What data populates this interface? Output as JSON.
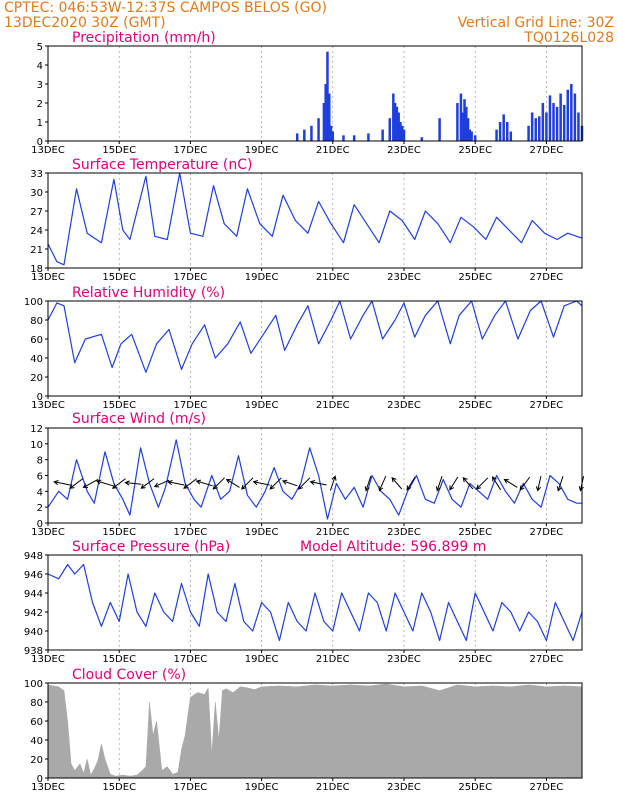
{
  "header": {
    "line1": "CPTEC:   046:53W-12:37S   CAMPOS BELOS (GO)",
    "line2": "13DEC2020 30Z (GMT)",
    "right1": "Vertical Grid Line: 30Z",
    "right2": "TQ0126L028"
  },
  "colors": {
    "line": "#1f3fdc",
    "header": "#e07a1e",
    "title": "#e0007a",
    "cloud": "#a9a9a9",
    "grid": "#888888"
  },
  "chart_data": [
    {
      "type": "bar",
      "title": "Precipitation (mm/h)",
      "ylim": [
        0,
        5
      ],
      "yticks": [
        0,
        1,
        2,
        3,
        4,
        5
      ],
      "xlim": [
        13,
        28
      ],
      "xticks": [
        13,
        15,
        17,
        19,
        21,
        23,
        25,
        27
      ],
      "xticklabels": [
        "13DEC",
        "15DEC",
        "17DEC",
        "19DEC",
        "21DEC",
        "23DEC",
        "25DEC",
        "27DEC"
      ],
      "series": [
        {
          "x": [
            20.0,
            20.2,
            20.4,
            20.6,
            20.75,
            20.8,
            20.85,
            20.9,
            20.95,
            21.0,
            21.3,
            21.6,
            22.0,
            22.4,
            22.6,
            22.7,
            22.75,
            22.8,
            22.85,
            22.9,
            22.95,
            23.0,
            23.5,
            24.0,
            24.5,
            24.6,
            24.65,
            24.7,
            24.75,
            24.8,
            24.85,
            24.9,
            25.0,
            25.6,
            25.7,
            25.8,
            25.9,
            26.0,
            26.5,
            26.6,
            26.7,
            26.8,
            26.9,
            27.0,
            27.1,
            27.2,
            27.3,
            27.4,
            27.5,
            27.6,
            27.7,
            27.8,
            27.9,
            28.0
          ],
          "y": [
            0.4,
            0.6,
            0.8,
            1.2,
            2.0,
            3.0,
            4.7,
            2.5,
            0.8,
            0.5,
            0.3,
            0.3,
            0.4,
            0.6,
            1.2,
            2.5,
            2.0,
            1.8,
            1.5,
            1.0,
            0.8,
            0.6,
            0.2,
            1.2,
            2.0,
            2.5,
            1.5,
            2.2,
            1.8,
            1.2,
            0.6,
            0.5,
            0.3,
            0.6,
            1.0,
            1.4,
            1.0,
            0.5,
            0.8,
            1.5,
            1.2,
            1.3,
            2.0,
            1.5,
            2.4,
            2.0,
            1.8,
            2.5,
            1.9,
            2.7,
            3.0,
            2.5,
            1.5,
            0.8
          ]
        }
      ]
    },
    {
      "type": "line",
      "title": "Surface Temperature (nC)",
      "ylim": [
        18,
        33
      ],
      "yticks": [
        18,
        21,
        24,
        27,
        30,
        33
      ],
      "xlim": [
        13,
        28
      ],
      "xticks": [
        13,
        15,
        17,
        19,
        21,
        23,
        25,
        27
      ],
      "xticklabels": [
        "13DEC",
        "15DEC",
        "17DEC",
        "19DEC",
        "21DEC",
        "23DEC",
        "25DEC",
        "27DEC"
      ],
      "series": [
        {
          "x": [
            13.0,
            13.25,
            13.45,
            13.8,
            14.1,
            14.5,
            14.85,
            15.1,
            15.3,
            15.75,
            16.0,
            16.35,
            16.7,
            17.0,
            17.35,
            17.65,
            17.95,
            18.3,
            18.6,
            18.95,
            19.3,
            19.6,
            19.95,
            20.3,
            20.6,
            20.95,
            21.3,
            21.6,
            21.95,
            22.3,
            22.6,
            22.95,
            23.3,
            23.6,
            23.95,
            24.3,
            24.6,
            24.95,
            25.3,
            25.6,
            25.95,
            26.3,
            26.6,
            26.95,
            27.3,
            27.6,
            27.95,
            28.0
          ],
          "y": [
            21.8,
            19.0,
            18.5,
            30.5,
            23.5,
            22.0,
            32.0,
            24.0,
            22.5,
            32.5,
            23.0,
            22.5,
            33.0,
            23.5,
            23.0,
            31.0,
            25.0,
            23.0,
            30.5,
            25.0,
            23.0,
            29.5,
            25.5,
            23.5,
            28.5,
            25.0,
            22.0,
            28.0,
            25.0,
            22.0,
            27.0,
            25.5,
            22.5,
            27.0,
            25.0,
            22.0,
            26.0,
            24.5,
            22.5,
            26.0,
            24.0,
            22.0,
            25.5,
            23.5,
            22.5,
            23.5,
            22.8,
            22.8
          ]
        }
      ]
    },
    {
      "type": "line",
      "title": "Relative Humidity (%)",
      "ylim": [
        0,
        100
      ],
      "yticks": [
        0,
        20,
        40,
        60,
        80,
        100
      ],
      "xlim": [
        13,
        28
      ],
      "xticks": [
        13,
        15,
        17,
        19,
        21,
        23,
        25,
        27
      ],
      "xticklabels": [
        "13DEC",
        "15DEC",
        "17DEC",
        "19DEC",
        "21DEC",
        "23DEC",
        "25DEC",
        "27DEC"
      ],
      "series": [
        {
          "x": [
            13.0,
            13.25,
            13.45,
            13.75,
            14.05,
            14.5,
            14.8,
            15.05,
            15.35,
            15.75,
            16.05,
            16.4,
            16.75,
            17.05,
            17.4,
            17.7,
            18.05,
            18.4,
            18.7,
            19.05,
            19.4,
            19.65,
            20.0,
            20.3,
            20.6,
            20.95,
            21.2,
            21.5,
            21.85,
            22.1,
            22.4,
            22.75,
            23.0,
            23.3,
            23.6,
            23.95,
            24.3,
            24.55,
            24.9,
            25.2,
            25.55,
            25.85,
            26.2,
            26.55,
            26.85,
            27.2,
            27.5,
            27.85,
            28.0
          ],
          "y": [
            80,
            98,
            95,
            35,
            60,
            65,
            30,
            55,
            65,
            25,
            55,
            70,
            28,
            55,
            75,
            40,
            55,
            78,
            45,
            65,
            85,
            48,
            75,
            95,
            55,
            80,
            100,
            60,
            85,
            100,
            60,
            80,
            98,
            62,
            85,
            100,
            55,
            85,
            100,
            60,
            85,
            100,
            60,
            90,
            100,
            62,
            95,
            100,
            95
          ]
        }
      ]
    },
    {
      "type": "line",
      "title": "Surface Wind (m/s)",
      "ylim": [
        0,
        12
      ],
      "yticks": [
        0,
        2,
        4,
        6,
        8,
        10,
        12
      ],
      "xlim": [
        13,
        28
      ],
      "xticks": [
        13,
        15,
        17,
        19,
        21,
        23,
        25,
        27
      ],
      "xticklabels": [
        "13DEC",
        "15DEC",
        "17DEC",
        "19DEC",
        "21DEC",
        "23DEC",
        "25DEC",
        "27DEC"
      ],
      "series": [
        {
          "x": [
            13.0,
            13.3,
            13.55,
            13.8,
            14.1,
            14.3,
            14.6,
            14.85,
            15.1,
            15.3,
            15.6,
            15.85,
            16.1,
            16.3,
            16.6,
            16.85,
            17.1,
            17.3,
            17.6,
            17.85,
            18.1,
            18.35,
            18.6,
            18.85,
            19.1,
            19.35,
            19.6,
            19.85,
            20.1,
            20.35,
            20.6,
            20.85,
            21.1,
            21.35,
            21.6,
            21.85,
            22.1,
            22.35,
            22.6,
            22.85,
            23.1,
            23.35,
            23.6,
            23.85,
            24.1,
            24.35,
            24.6,
            24.85,
            25.1,
            25.35,
            25.6,
            25.85,
            26.1,
            26.35,
            26.6,
            26.85,
            27.1,
            27.35,
            27.6,
            27.85,
            28.0
          ],
          "y": [
            2,
            4,
            3,
            8,
            4,
            2.5,
            9,
            5,
            3,
            1,
            9.5,
            5,
            2,
            4.5,
            10.5,
            5,
            3,
            2,
            6,
            3,
            4,
            8.5,
            3.5,
            2,
            4,
            7,
            4,
            3,
            5,
            9.5,
            6,
            0.5,
            5,
            3,
            4.5,
            2,
            6,
            4,
            3,
            1,
            4,
            6,
            3,
            2.5,
            5.5,
            3,
            2,
            5,
            4,
            3,
            6,
            4,
            2.5,
            5,
            3,
            2,
            6,
            5,
            3,
            2.5,
            2.5
          ]
        }
      ],
      "wind_arrows": [
        {
          "x": 13.4,
          "u": -1,
          "v": 0.2
        },
        {
          "x": 13.8,
          "u": -0.8,
          "v": -0.6
        },
        {
          "x": 14.2,
          "u": -0.9,
          "v": -0.5
        },
        {
          "x": 14.6,
          "u": -1,
          "v": 0.3
        },
        {
          "x": 15.0,
          "u": -0.8,
          "v": -0.6
        },
        {
          "x": 15.4,
          "u": -1,
          "v": 0.1
        },
        {
          "x": 15.8,
          "u": -0.8,
          "v": -0.6
        },
        {
          "x": 16.2,
          "u": -0.9,
          "v": -0.4
        },
        {
          "x": 16.6,
          "u": -1,
          "v": 0.2
        },
        {
          "x": 17.0,
          "u": -0.8,
          "v": -0.6
        },
        {
          "x": 17.4,
          "u": -1,
          "v": 0.3
        },
        {
          "x": 17.8,
          "u": -0.7,
          "v": -0.7
        },
        {
          "x": 18.2,
          "u": -0.8,
          "v": 0.5
        },
        {
          "x": 18.6,
          "u": -0.7,
          "v": -0.7
        },
        {
          "x": 19.0,
          "u": -1,
          "v": 0.2
        },
        {
          "x": 19.4,
          "u": -0.7,
          "v": -0.7
        },
        {
          "x": 19.8,
          "u": -0.9,
          "v": 0.3
        },
        {
          "x": 20.2,
          "u": -0.7,
          "v": -0.7
        },
        {
          "x": 20.6,
          "u": -1,
          "v": 0.2
        },
        {
          "x": 21.0,
          "u": 0.3,
          "v": 0.9
        },
        {
          "x": 22.0,
          "u": -0.3,
          "v": -0.9
        },
        {
          "x": 22.4,
          "u": -0.4,
          "v": -0.9
        },
        {
          "x": 22.8,
          "u": -0.6,
          "v": 0.7
        },
        {
          "x": 23.2,
          "u": -0.5,
          "v": -0.8
        },
        {
          "x": 24.0,
          "u": -0.3,
          "v": -0.9
        },
        {
          "x": 24.4,
          "u": -0.5,
          "v": -0.8
        },
        {
          "x": 24.8,
          "u": -0.6,
          "v": 0.7
        },
        {
          "x": 25.2,
          "u": -0.7,
          "v": -0.7
        },
        {
          "x": 25.6,
          "u": -0.5,
          "v": 0.8
        },
        {
          "x": 26.0,
          "u": -0.8,
          "v": 0.5
        },
        {
          "x": 26.4,
          "u": -0.6,
          "v": -0.8
        },
        {
          "x": 26.8,
          "u": -0.2,
          "v": -0.9
        },
        {
          "x": 27.4,
          "u": -0.3,
          "v": -0.9
        },
        {
          "x": 28.0,
          "u": -0.2,
          "v": -0.9
        }
      ]
    },
    {
      "type": "line",
      "title": "Surface Pressure (hPa)",
      "annotation": "Model Altitude: 596.899 m",
      "ylim": [
        938,
        948
      ],
      "yticks": [
        938,
        940,
        942,
        944,
        946,
        948
      ],
      "xlim": [
        13,
        28
      ],
      "xticks": [
        13,
        15,
        17,
        19,
        21,
        23,
        25,
        27
      ],
      "xticklabels": [
        "13DEC",
        "15DEC",
        "17DEC",
        "19DEC",
        "21DEC",
        "23DEC",
        "25DEC",
        "27DEC"
      ],
      "series": [
        {
          "x": [
            13.0,
            13.3,
            13.55,
            13.75,
            14.0,
            14.25,
            14.5,
            14.75,
            15.0,
            15.25,
            15.5,
            15.75,
            16.0,
            16.25,
            16.5,
            16.75,
            17.0,
            17.25,
            17.5,
            17.75,
            18.0,
            18.25,
            18.5,
            18.75,
            19.0,
            19.25,
            19.5,
            19.75,
            20.0,
            20.25,
            20.5,
            20.75,
            21.0,
            21.25,
            21.5,
            21.75,
            22.0,
            22.25,
            22.5,
            22.75,
            23.0,
            23.25,
            23.5,
            23.75,
            24.0,
            24.25,
            24.5,
            24.75,
            25.0,
            25.25,
            25.5,
            25.75,
            26.0,
            26.25,
            26.5,
            26.75,
            27.0,
            27.25,
            27.5,
            27.75,
            28.0
          ],
          "y": [
            946,
            945.5,
            947,
            946,
            947,
            943,
            940.5,
            943,
            941,
            946,
            942,
            940.5,
            944,
            942,
            941,
            945,
            942,
            940.5,
            946,
            942,
            941,
            945,
            941,
            940,
            943,
            942,
            939,
            943,
            941,
            940,
            944,
            941,
            940,
            944,
            942,
            940,
            944,
            943,
            940,
            944,
            942,
            940,
            944,
            942,
            939,
            943,
            941,
            939,
            944,
            942,
            940,
            943,
            942,
            940,
            942,
            941,
            939,
            943,
            941,
            939,
            942
          ]
        }
      ]
    },
    {
      "type": "area",
      "title": "Cloud Cover (%)",
      "ylim": [
        0,
        100
      ],
      "yticks": [
        0,
        20,
        40,
        60,
        80,
        100
      ],
      "xlim": [
        13,
        28
      ],
      "xticks": [
        13,
        15,
        17,
        19,
        21,
        23,
        25,
        27
      ],
      "xticklabels": [
        "13DEC",
        "15DEC",
        "17DEC",
        "19DEC",
        "21DEC",
        "23DEC",
        "25DEC",
        "27DEC"
      ],
      "series": [
        {
          "x": [
            13.0,
            13.15,
            13.3,
            13.45,
            13.55,
            13.65,
            13.75,
            13.9,
            14.0,
            14.1,
            14.2,
            14.3,
            14.4,
            14.5,
            14.6,
            14.75,
            14.9,
            15.1,
            15.3,
            15.5,
            15.65,
            15.75,
            15.85,
            15.95,
            16.05,
            16.2,
            16.35,
            16.5,
            16.65,
            16.75,
            16.85,
            17.0,
            17.2,
            17.4,
            17.5,
            17.6,
            17.7,
            17.8,
            17.9,
            18.0,
            18.2,
            18.4,
            18.6,
            18.8,
            19.0,
            19.5,
            20.0,
            20.5,
            21.0,
            21.5,
            22.0,
            22.5,
            23.0,
            23.5,
            24.0,
            24.5,
            25.0,
            25.5,
            26.0,
            26.5,
            27.0,
            27.5,
            28.0
          ],
          "y": [
            98,
            97,
            96,
            92,
            60,
            15,
            8,
            15,
            5,
            20,
            3,
            10,
            18,
            36,
            20,
            4,
            2,
            3,
            2,
            3,
            8,
            12,
            80,
            45,
            60,
            8,
            12,
            4,
            6,
            30,
            45,
            85,
            90,
            88,
            95,
            25,
            80,
            40,
            92,
            94,
            90,
            96,
            95,
            93,
            96,
            97,
            96,
            98,
            97,
            98,
            97,
            99,
            96,
            97,
            92,
            98,
            96,
            97,
            96,
            98,
            96,
            97,
            96
          ]
        }
      ]
    }
  ]
}
